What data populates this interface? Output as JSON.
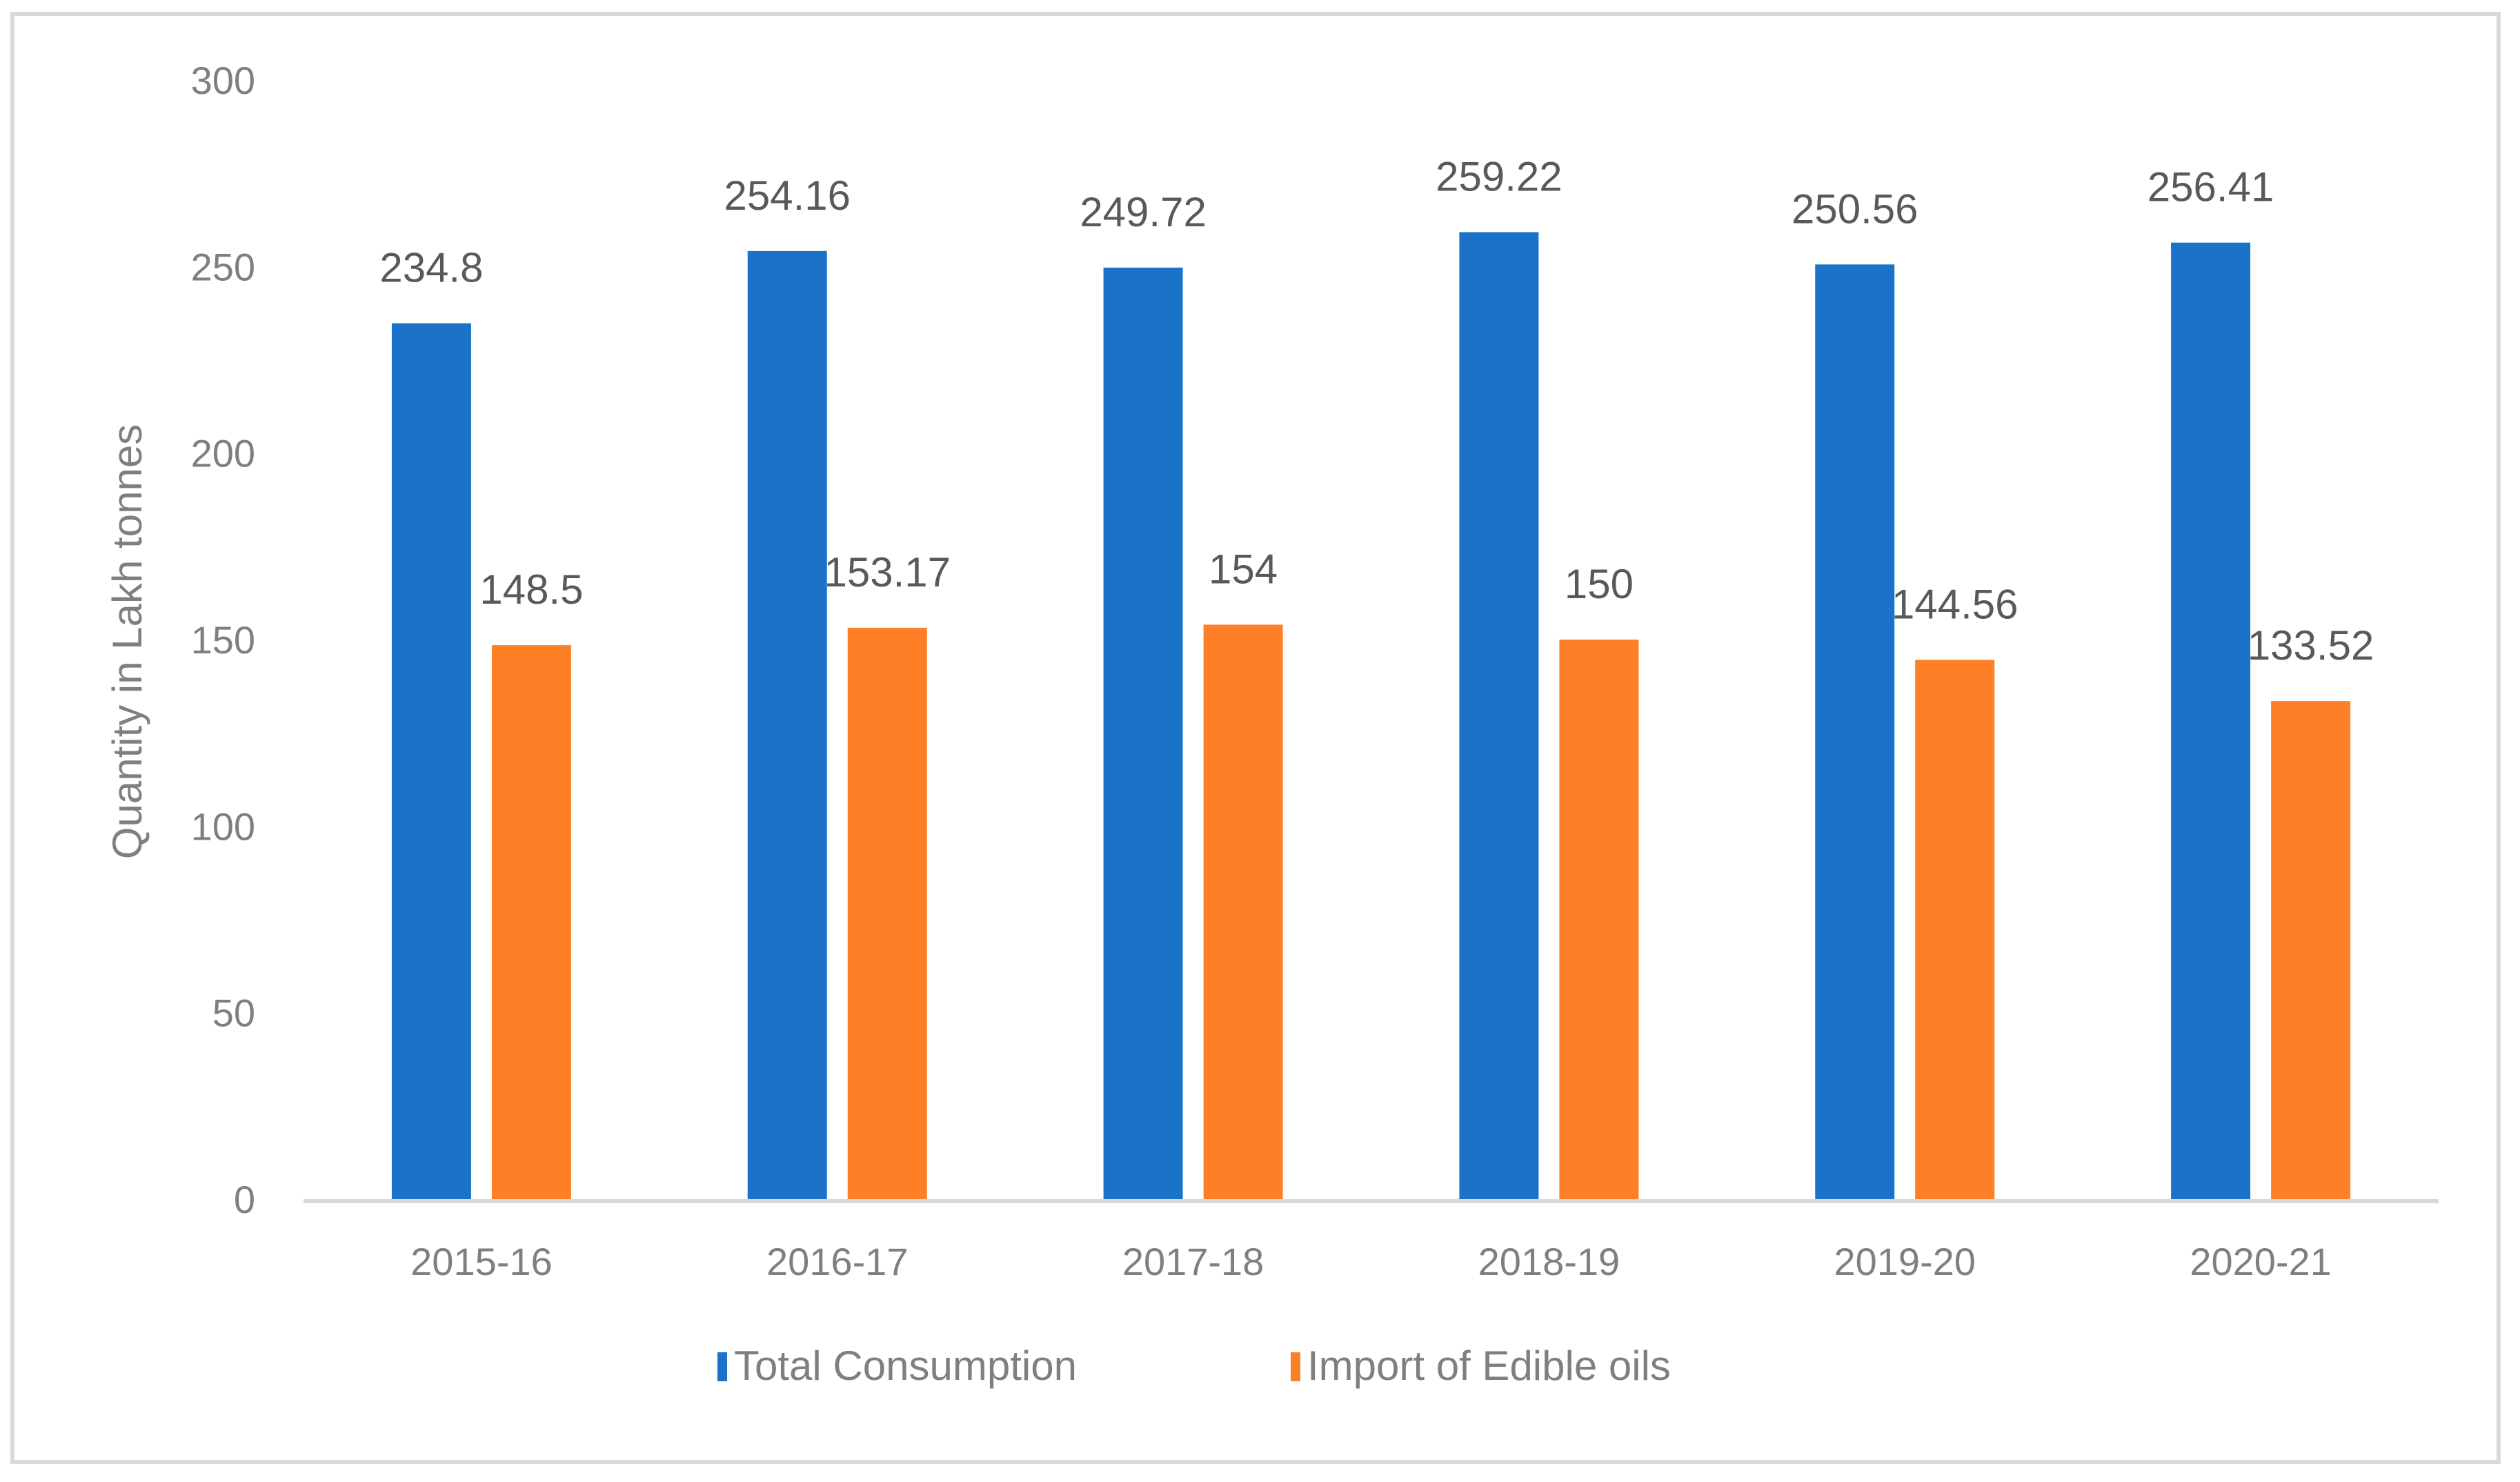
{
  "chart_data": {
    "type": "bar",
    "title": "",
    "xlabel": "",
    "ylabel": "Quantity in Lakh tonnes",
    "ylim": [
      0,
      300
    ],
    "yticks": [
      0,
      50,
      100,
      150,
      200,
      250,
      300
    ],
    "ytick_labels": [
      "0",
      "50",
      "100",
      "150",
      "200",
      "250",
      "300"
    ],
    "grid": false,
    "legend_position": "bottom",
    "categories": [
      "2015-16",
      "2016-17",
      "2017-18",
      "2018-19",
      "2019-20",
      "2020-21"
    ],
    "series": [
      {
        "name": "Total Consumption",
        "color": "#1a73c8",
        "values": [
          234.8,
          254.16,
          249.72,
          259.22,
          250.56,
          256.41
        ],
        "labels": [
          "234.8",
          "254.16",
          "249.72",
          "259.22",
          "250.56",
          "256.41"
        ]
      },
      {
        "name": "Import of Edible oils",
        "color": "#ff7f27",
        "values": [
          148.5,
          153.17,
          154,
          150,
          144.56,
          133.52
        ],
        "labels": [
          "148.5",
          "153.17",
          "154",
          "150",
          "144.56",
          "133.52"
        ]
      }
    ]
  }
}
